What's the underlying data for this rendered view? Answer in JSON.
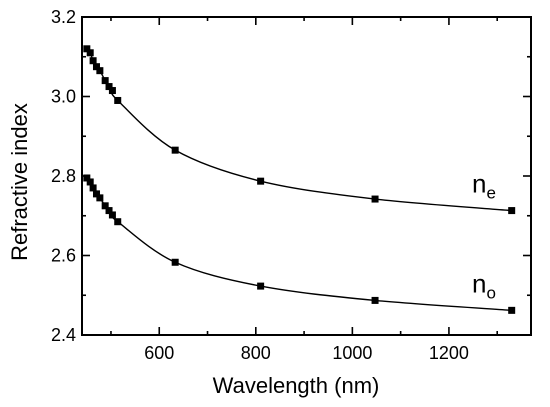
{
  "chart_data": {
    "type": "line",
    "title": "",
    "xlabel": "Wavelength (nm)",
    "ylabel": "Refractive index",
    "xlim": [
      440,
      1370
    ],
    "ylim": [
      2.4,
      3.2
    ],
    "x_ticks": [
      600,
      800,
      1000,
      1200
    ],
    "y_ticks": [
      2.4,
      2.6,
      2.8,
      3.0,
      3.2
    ],
    "x_tick_labels": [
      "600",
      "800",
      "1000",
      "1200"
    ],
    "y_tick_labels": [
      "2.4",
      "2.6",
      "2.8",
      "3.0",
      "3.2"
    ],
    "grid": false,
    "legend": "none",
    "series": [
      {
        "name_main": "n",
        "name_sub": "e",
        "x": [
          450,
          457,
          463,
          470,
          477,
          488,
          496,
          503,
          514,
          633,
          810,
          1047,
          1330
        ],
        "y": [
          3.12,
          3.11,
          3.09,
          3.075,
          3.065,
          3.04,
          3.025,
          3.015,
          2.99,
          2.865,
          2.787,
          2.742,
          2.713
        ]
      },
      {
        "name_main": "n",
        "name_sub": "o",
        "x": [
          450,
          457,
          463,
          470,
          477,
          488,
          496,
          503,
          514,
          633,
          810,
          1047,
          1330
        ],
        "y": [
          2.795,
          2.785,
          2.77,
          2.755,
          2.745,
          2.725,
          2.713,
          2.702,
          2.685,
          2.583,
          2.523,
          2.487,
          2.462
        ]
      }
    ]
  }
}
